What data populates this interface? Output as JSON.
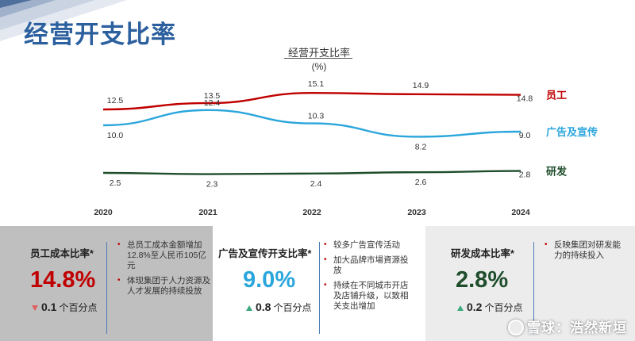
{
  "page_title": "经营开支比率",
  "chart_data": {
    "type": "line",
    "title": "经营开支比率",
    "unit": "(%)",
    "categories": [
      "2020",
      "2021",
      "2022",
      "2023",
      "2024"
    ],
    "series": [
      {
        "name": "员工",
        "values": [
          12.5,
          13.5,
          15.1,
          14.9,
          14.8
        ],
        "color": "#c00000"
      },
      {
        "name": "广告及宣传",
        "values": [
          10.0,
          12.4,
          10.3,
          8.2,
          9.0
        ],
        "color": "#2aa6dc"
      },
      {
        "name": "研发",
        "values": [
          2.5,
          2.3,
          2.4,
          2.6,
          2.8
        ],
        "color": "#1e4d2b"
      }
    ],
    "grid": false,
    "legend": "right"
  },
  "panels": [
    {
      "title": "员工成本比率*",
      "value": "14.8%",
      "value_color": "#c00000",
      "change_direction": "down",
      "change_value": "0.1",
      "change_unit": "个百分点",
      "bullets": [
        "总员工成本金额增加12.8%至人民币105亿元",
        "体现集团于人力资源及人才发展的持续投放"
      ]
    },
    {
      "title": "广告及宣传开支比率*",
      "value": "9.0%",
      "value_color": "#2aa6dc",
      "change_direction": "up",
      "change_value": "0.8",
      "change_unit": "个百分点",
      "bullets": [
        "较多广告宣传活动",
        "加大品牌市場資源投放",
        "持续在不同城市开店及店铺升级，以致相关支出增加"
      ]
    },
    {
      "title": "研发成本比率*",
      "value": "2.8%",
      "value_color": "#1e4d2b",
      "change_direction": "up",
      "change_value": "0.2",
      "change_unit": "个百分点",
      "bullets": [
        "反映集团对研发能力的持续投入"
      ]
    }
  ],
  "watermark": "雪球：浩然新垣"
}
